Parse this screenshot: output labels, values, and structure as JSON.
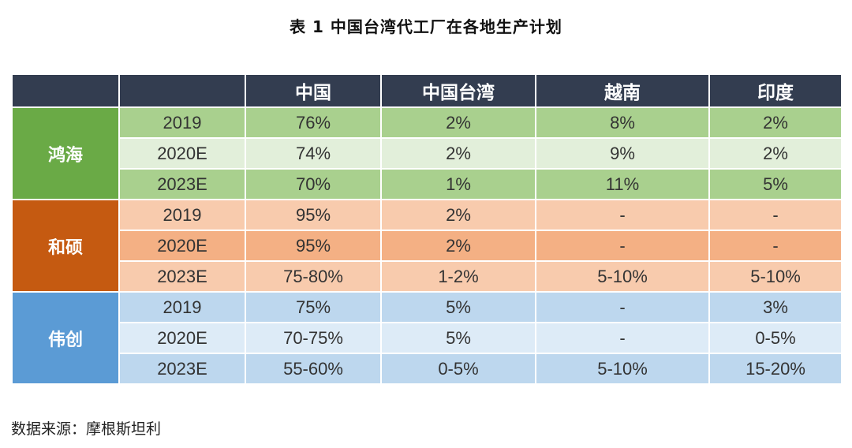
{
  "title": "表 1  中国台湾代工厂在各地生产计划",
  "columns": [
    "",
    "",
    "中国",
    "中国台湾",
    "越南",
    "印度"
  ],
  "groups": [
    {
      "company": "鸿海",
      "rows": [
        {
          "year": "2019",
          "values": [
            "76%",
            "2%",
            "8%",
            "2%"
          ]
        },
        {
          "year": "2020E",
          "values": [
            "74%",
            "2%",
            "9%",
            "2%"
          ]
        },
        {
          "year": "2023E",
          "values": [
            "70%",
            "1%",
            "11%",
            "5%"
          ]
        }
      ]
    },
    {
      "company": "和硕",
      "rows": [
        {
          "year": "2019",
          "values": [
            "95%",
            "2%",
            "-",
            "-"
          ]
        },
        {
          "year": "2020E",
          "values": [
            "95%",
            "2%",
            "-",
            "-"
          ]
        },
        {
          "year": "2023E",
          "values": [
            "75-80%",
            "1-2%",
            "5-10%",
            "5-10%"
          ]
        }
      ]
    },
    {
      "company": "伟创",
      "rows": [
        {
          "year": "2019",
          "values": [
            "75%",
            "5%",
            "-",
            "3%"
          ]
        },
        {
          "year": "2020E",
          "values": [
            "70-75%",
            "5%",
            "-",
            "0-5%"
          ]
        },
        {
          "year": "2023E",
          "values": [
            "55-60%",
            "0-5%",
            "5-10%",
            "15-20%"
          ]
        }
      ]
    }
  ],
  "colors": {
    "header": "#333d50",
    "group_1": [
      "#6aaa46",
      "#a9d08e",
      "#e2efda"
    ],
    "group_2": [
      "#c55a11",
      "#f8cbad",
      "#f4b084"
    ],
    "group_3": [
      "#5b9bd5",
      "#bdd7ee",
      "#ddebf7"
    ]
  },
  "source": "数据来源：摩根斯坦利"
}
